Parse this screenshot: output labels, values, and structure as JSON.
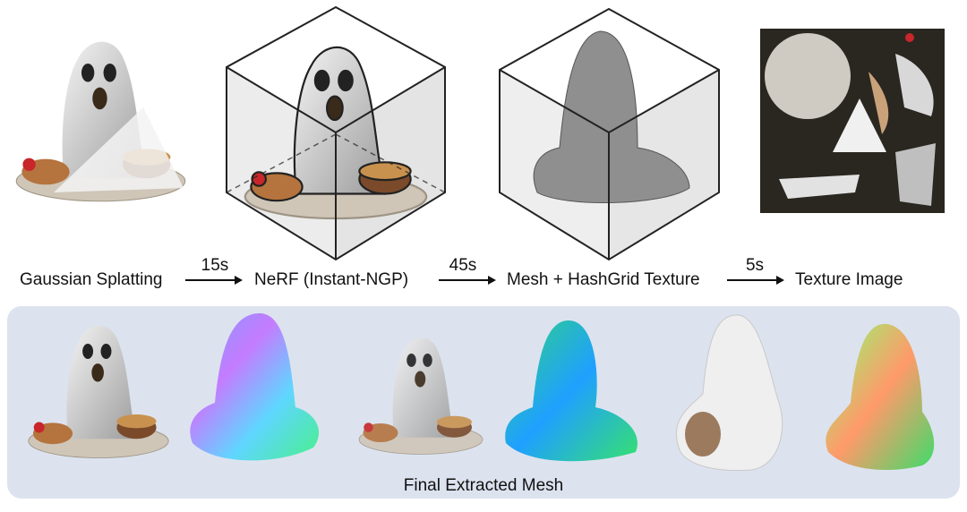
{
  "stages": [
    {
      "label": "Gaussian Splatting"
    },
    {
      "label": "NeRF (Instant-NGP)"
    },
    {
      "label": "Mesh + HashGrid Texture"
    },
    {
      "label": "Texture Image"
    }
  ],
  "transitions": [
    {
      "time": "15s"
    },
    {
      "time": "45s"
    },
    {
      "time": "5s"
    }
  ],
  "bottom_panel": {
    "caption": "Final Extracted Mesh"
  }
}
